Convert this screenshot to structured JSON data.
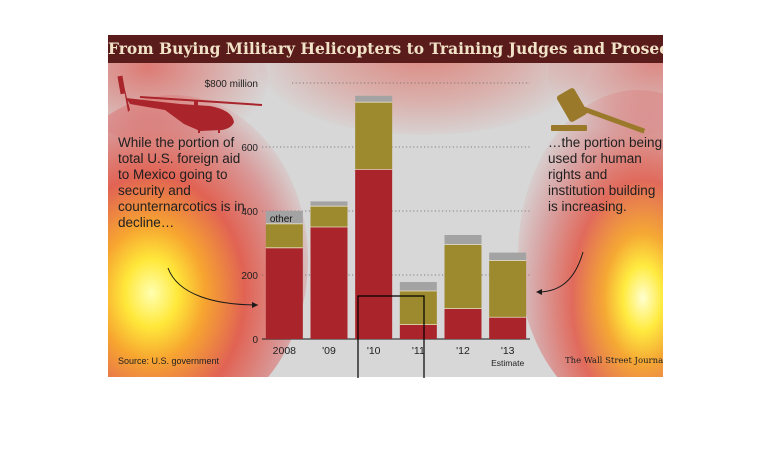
{
  "title": "From Buying Military Helicopters to Training Judges and Prosecutors",
  "annotations": {
    "left": "While the portion of total U.S. foreign aid to Mexico going to security and counternarcotics is in decline…",
    "right": "…the portion being used for human rights and institution building is increasing."
  },
  "source": "Source: U.S. government",
  "credit": "The Wall Street Journal",
  "icons": [
    "helicopter-icon",
    "gavel-icon"
  ],
  "colors": {
    "security": "#a9252b",
    "institution": "#9e8a2e",
    "other": "#a3a3a3",
    "title_bg": "#5a1b1b",
    "title_text": "#f1e3c8"
  },
  "chart_data": {
    "type": "bar",
    "stacked": true,
    "categories": [
      "2008",
      "'09",
      "'10",
      "'11",
      "'12",
      "'13"
    ],
    "category_note": {
      "'13": "Estimate"
    },
    "series": [
      {
        "values": [
          285,
          350,
          530,
          45,
          95,
          68
        ]
      },
      {
        "values": [
          75,
          65,
          210,
          105,
          200,
          177
        ]
      },
      {
        "name": "other",
        "values": [
          40,
          15,
          20,
          28,
          30,
          25
        ]
      }
    ],
    "ylim": [
      0,
      800
    ],
    "yticks": [
      "0",
      "200",
      "400",
      "600",
      "$800 million"
    ],
    "ytick_values": [
      0,
      200,
      400,
      600,
      800
    ],
    "grid": true
  }
}
